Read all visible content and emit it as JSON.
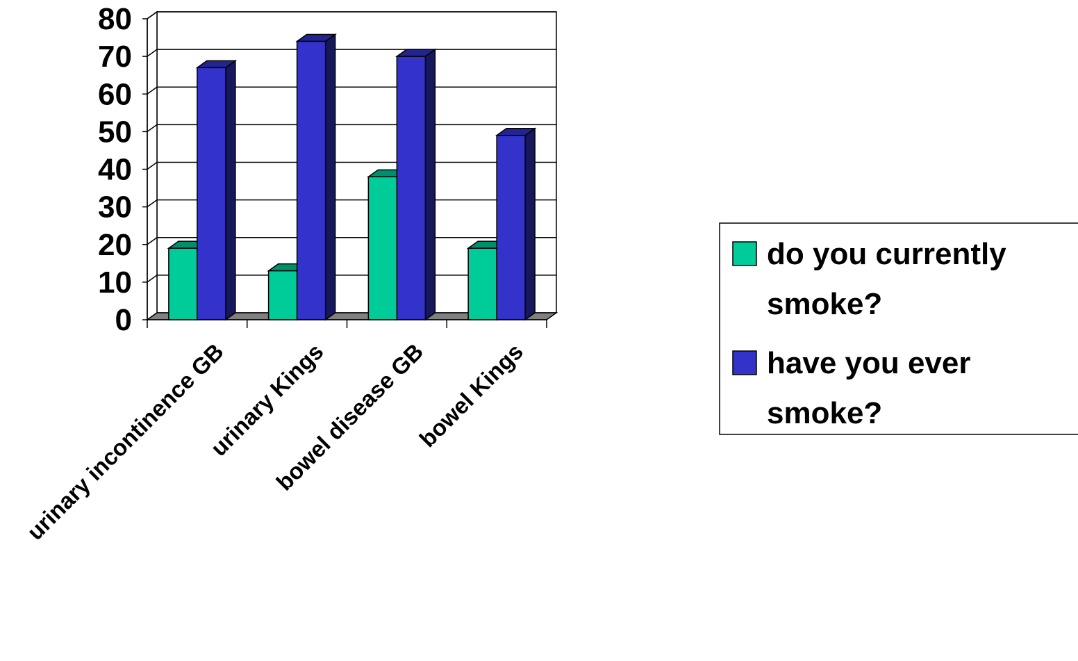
{
  "chart_data": {
    "type": "bar",
    "categories": [
      "urinary incontinence GB",
      "urinary Kings",
      "bowel disease GB",
      "bowel Kings"
    ],
    "series": [
      {
        "name": "do you currently smoke?",
        "values": [
          19,
          13,
          38,
          19
        ],
        "color": "#00CC99"
      },
      {
        "name": "have you ever smoke?",
        "values": [
          67,
          74,
          70,
          49
        ],
        "color": "#3333CC"
      }
    ],
    "ylim": [
      0,
      80
    ],
    "yticks": [
      "0",
      "10",
      "20",
      "30",
      "40",
      "50",
      "60",
      "70",
      "80"
    ],
    "grid": true,
    "legend_position": "right",
    "legend_lines": [
      [
        "do you currently",
        "smoke?"
      ],
      [
        "have you ever",
        "smoke?"
      ]
    ]
  }
}
